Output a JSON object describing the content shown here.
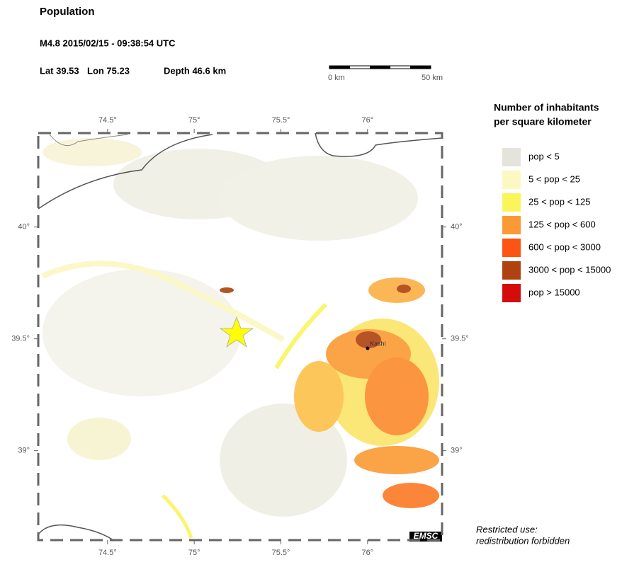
{
  "header": {
    "title": "Population",
    "event": "M4.8  2015/02/15 - 09:38:54 UTC",
    "lat": "Lat 39.53",
    "lon": "Lon 75.23",
    "depth": "Depth  46.6 km"
  },
  "scale": {
    "start": "0 km",
    "end": "50 km"
  },
  "map": {
    "xlim": [
      74.1,
      76.43
    ],
    "ylim": [
      38.6,
      40.42
    ],
    "xticks": [
      {
        "value": 74.5,
        "label": "74.5°"
      },
      {
        "value": 75,
        "label": "75°"
      },
      {
        "value": 75.5,
        "label": "75.5°"
      },
      {
        "value": 76,
        "label": "76°"
      }
    ],
    "yticks": [
      {
        "value": 39,
        "label": "39°"
      },
      {
        "value": 39.5,
        "label": "39.5°"
      },
      {
        "value": 40,
        "label": "40°"
      }
    ],
    "city": "Kashi",
    "credit": "EMSC"
  },
  "legend": {
    "title_line1": "Number of inhabitants",
    "title_line2": "per square kilometer",
    "items": [
      {
        "label": "pop < 5",
        "color": "#e4e4dc"
      },
      {
        "label": "5 < pop < 25",
        "color": "#fbf8c2"
      },
      {
        "label": "25 < pop < 125",
        "color": "#fbf55c"
      },
      {
        "label": "125 < pop < 600",
        "color": "#fb9a34"
      },
      {
        "label": "600 < pop < 3000",
        "color": "#fb5414"
      },
      {
        "label": "3000 < pop < 15000",
        "color": "#b0420f"
      },
      {
        "label": "pop > 15000",
        "color": "#d40c0c"
      }
    ]
  },
  "notice": {
    "line1": "Restricted use:",
    "line2": "redistribution forbidden"
  }
}
